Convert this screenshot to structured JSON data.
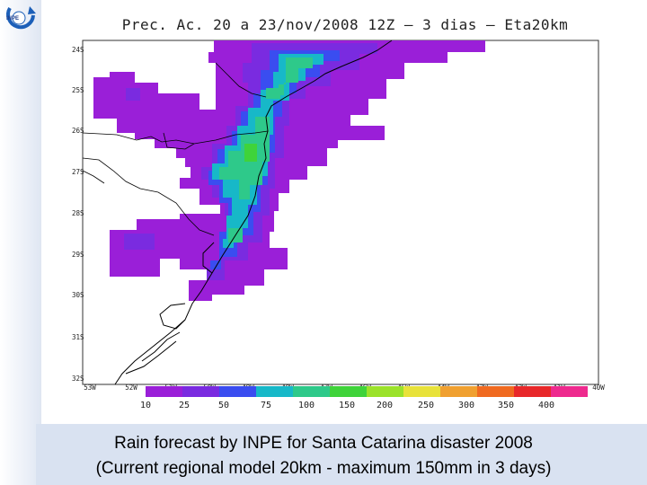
{
  "map": {
    "title": "Prec. Ac. 20 a 23/nov/2008 12Z — 3 dias — Eta20km",
    "lat_labels": [
      "24S",
      "25S",
      "26S",
      "27S",
      "28S",
      "29S",
      "30S",
      "31S",
      "32S"
    ],
    "lon_labels": [
      "53W",
      "52W",
      "51W",
      "50W",
      "49W",
      "48W",
      "47W",
      "46W",
      "45W",
      "44W",
      "43W",
      "42W",
      "41W",
      "40W"
    ],
    "colorbar_labels": [
      "10",
      "25",
      "50",
      "75",
      "100",
      "150",
      "200",
      "250",
      "300",
      "350",
      "400"
    ],
    "colorbar_colors": [
      "#9a1fd8",
      "#7a2be0",
      "#3a4df0",
      "#17b8c8",
      "#2ec98a",
      "#3fd33a",
      "#9be22a",
      "#e8e23a",
      "#f0a030",
      "#f06a20",
      "#e8282a",
      "#ee2a8e"
    ],
    "precip_colors": {
      "10": "#9a1fd8",
      "25": "#7a2be0",
      "50": "#3a4df0",
      "75": "#17b8c8",
      "100": "#2ec98a",
      "150": "#3fd33a"
    }
  },
  "logo": {
    "text": "INPE"
  },
  "caption": {
    "line1": "Rain forecast by INPE for Santa Catarina disaster 2008",
    "line2": "(Current regional model 20km - maximum 150mm in 3 days)"
  }
}
